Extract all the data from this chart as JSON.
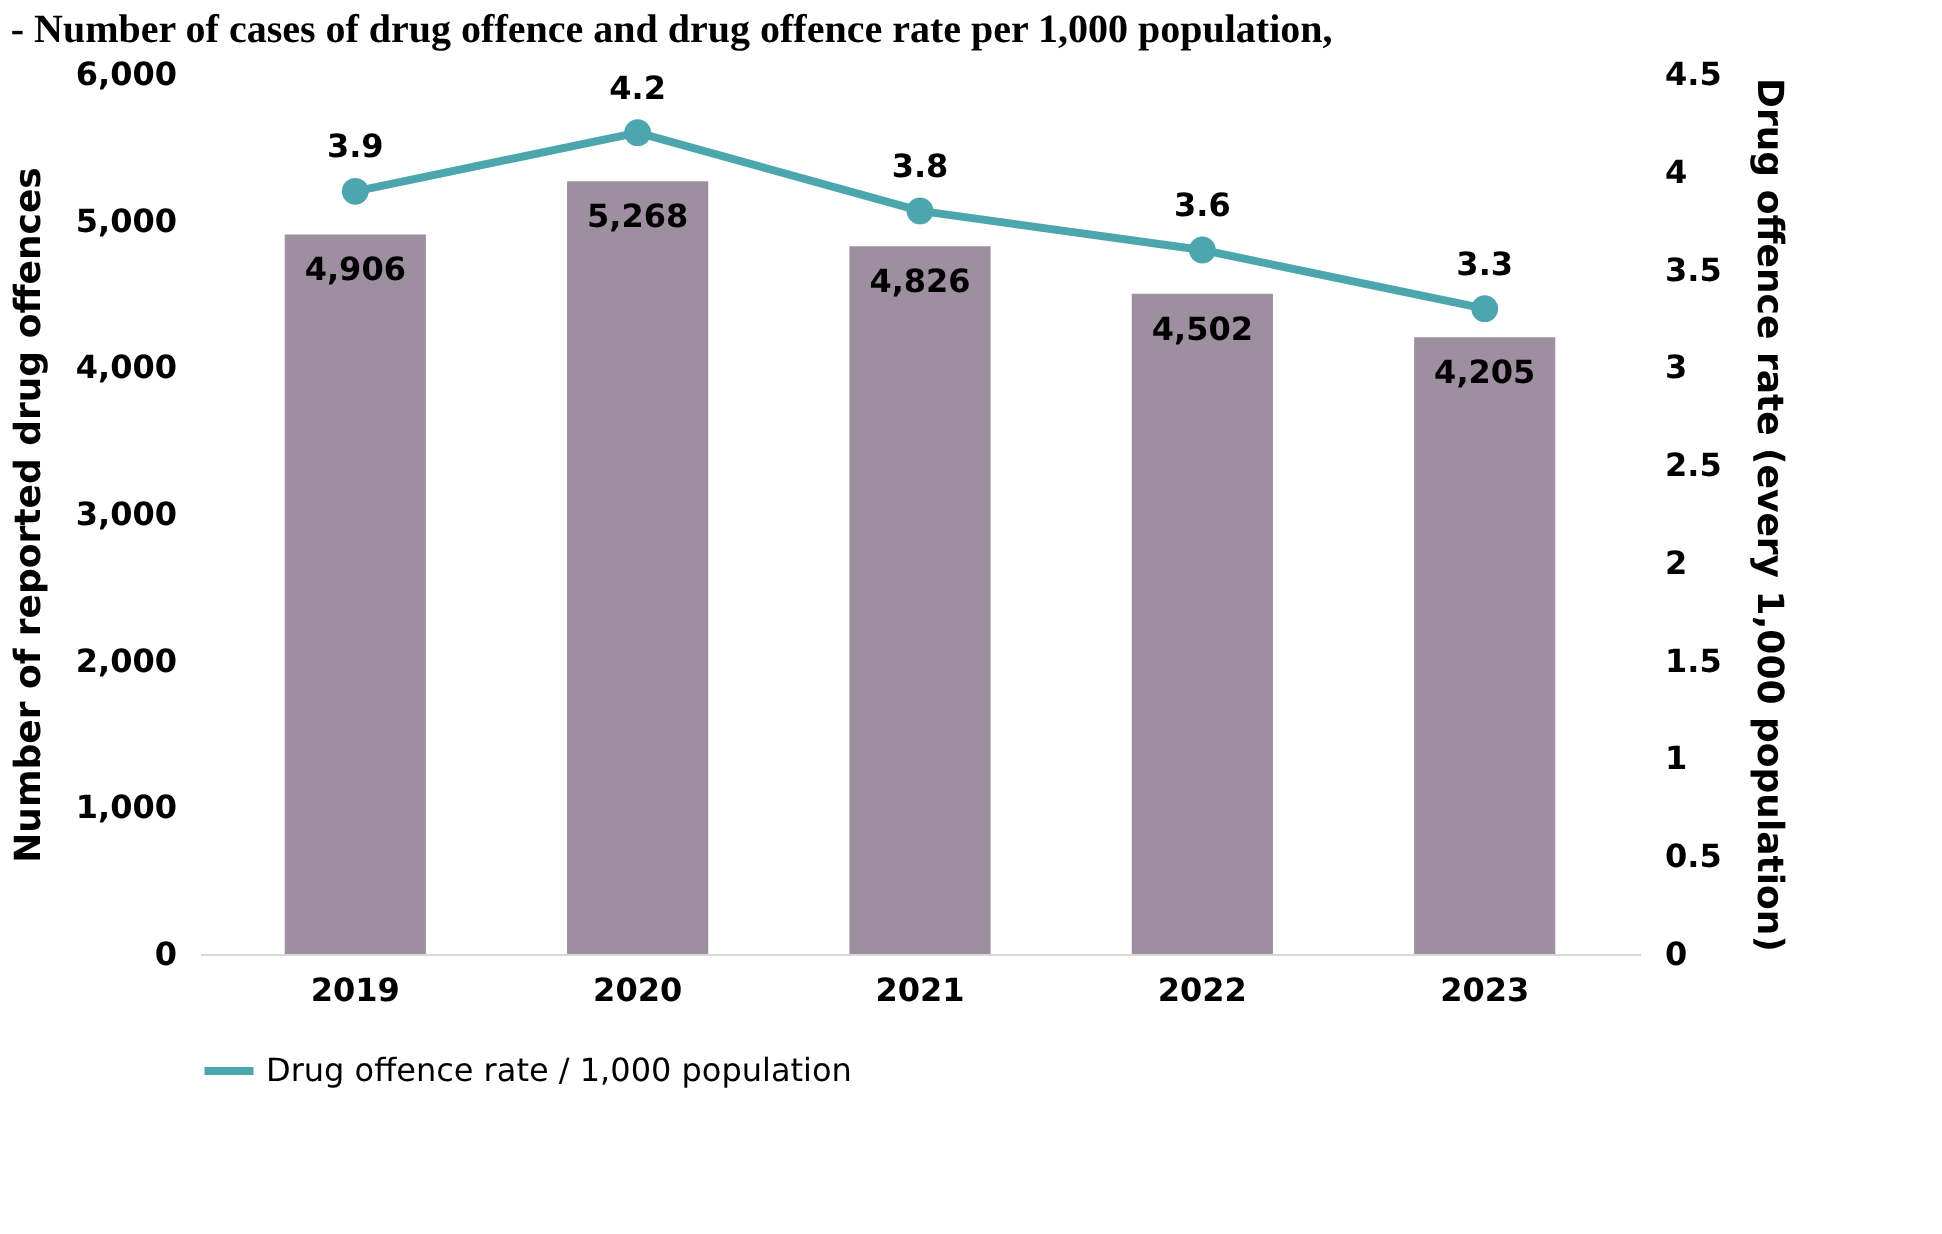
{
  "chart_data": {
    "type": "bar",
    "title": "- Number of cases of drug offence and drug offence rate per 1,000 population,",
    "ylabel": "Number of reported drug offences",
    "y2label": "Drug offence rate (every 1,000 population)",
    "categories": [
      "2019",
      "2020",
      "2021",
      "2022",
      "2023"
    ],
    "series": [
      {
        "color": "#9e8fa0",
        "values": [
          4906,
          5268,
          4826,
          4502,
          4205
        ],
        "value_labels": [
          "4,906",
          "5,268",
          "4,826",
          "4,502",
          "4,205"
        ]
      },
      {
        "type": "line",
        "axis": "y2",
        "name": "Drug offence rate / 1,000 population",
        "color": "#4ba6ae",
        "values": [
          3.9,
          4.2,
          3.8,
          3.6,
          3.3
        ],
        "value_labels": [
          "3.9",
          "4.2",
          "3.8",
          "3.6",
          "3.3"
        ]
      }
    ],
    "ylim": [
      0,
      6000
    ],
    "yticks": [
      0,
      {
        "value": 1000,
        "label": "1,000"
      },
      {
        "value": 2000,
        "label": "2,000"
      },
      {
        "value": 3000,
        "label": "3,000"
      },
      {
        "value": 4000,
        "label": "4,000"
      },
      {
        "value": 5000,
        "label": "5,000"
      },
      {
        "value": 6000,
        "label": "6,000"
      }
    ],
    "y2lim": [
      0,
      4.5
    ],
    "y2ticks": [
      0,
      0.5,
      1,
      1.5,
      2,
      2.5,
      3,
      3.5,
      4,
      4.5
    ],
    "legend": "bottom",
    "marker": "circle"
  }
}
